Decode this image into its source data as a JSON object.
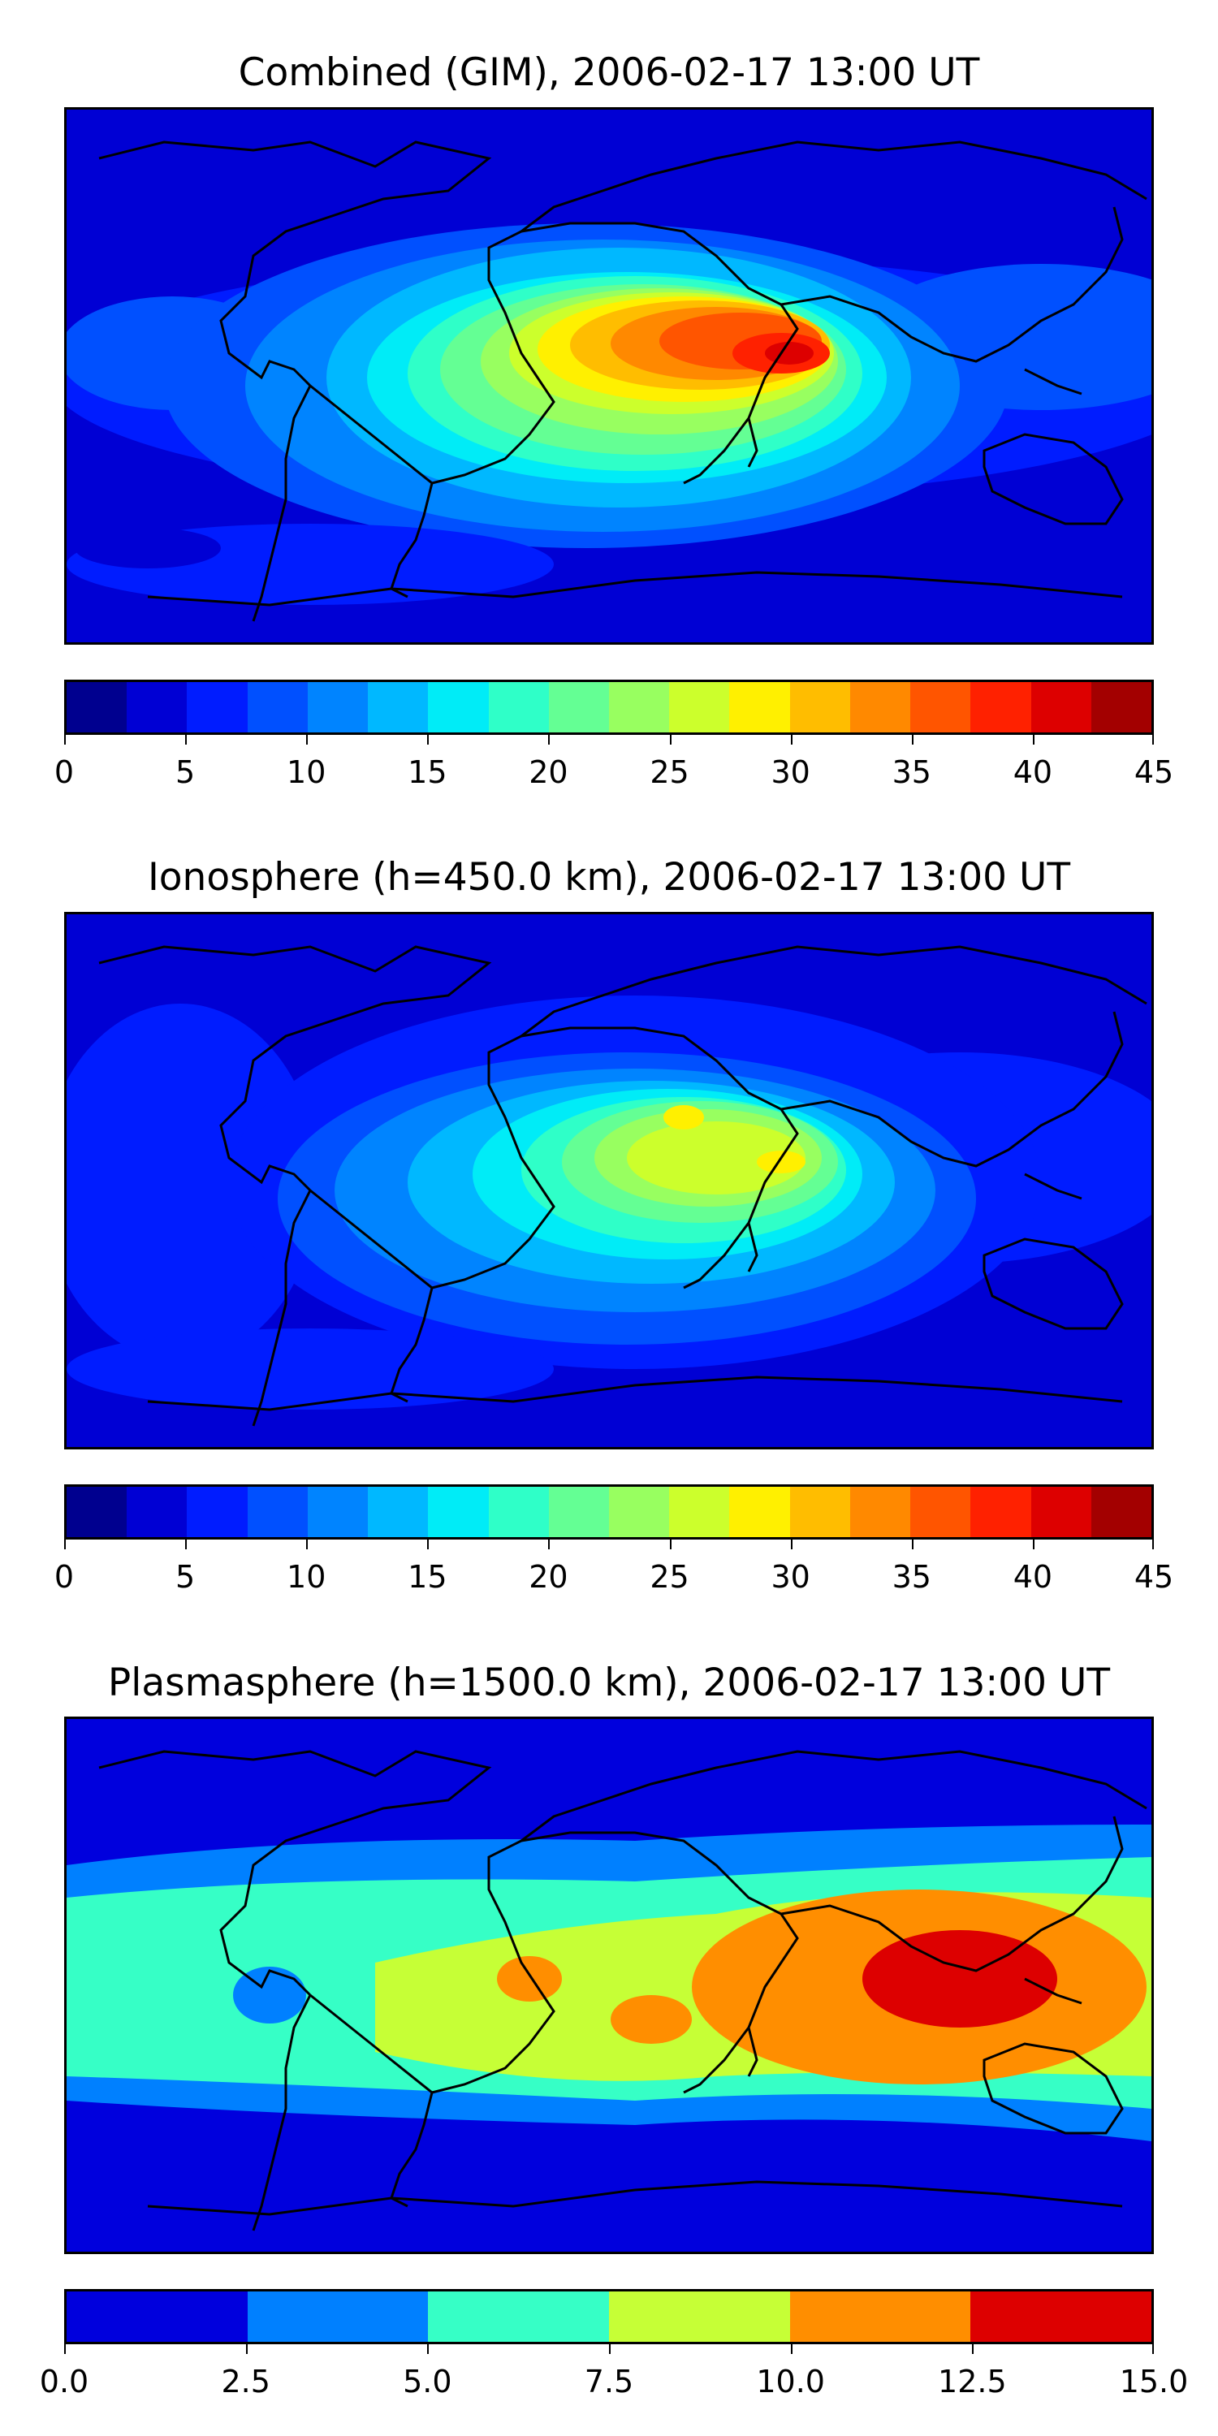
{
  "panels": [
    {
      "title": "Combined (GIM), 2006-02-17 13:00 UT",
      "colorbar": {
        "ticks": [
          "0",
          "5",
          "10",
          "15",
          "20",
          "25",
          "30",
          "35",
          "40",
          "45"
        ],
        "colors": [
          "#00008f",
          "#0000d4",
          "#001cff",
          "#0050ff",
          "#0084ff",
          "#00b8ff",
          "#00ecf7",
          "#2fffc8",
          "#64ff94",
          "#98ff60",
          "#ccff2c",
          "#fff000",
          "#ffbd00",
          "#ff8900",
          "#ff5500",
          "#ff2100",
          "#dd0000",
          "#a30000"
        ]
      }
    },
    {
      "title": "Ionosphere  (h=450.0 km), 2006-02-17 13:00 UT",
      "colorbar": {
        "ticks": [
          "0",
          "5",
          "10",
          "15",
          "20",
          "25",
          "30",
          "35",
          "40",
          "45"
        ],
        "colors": [
          "#00008f",
          "#0000d4",
          "#001cff",
          "#0050ff",
          "#0084ff",
          "#00b8ff",
          "#00ecf7",
          "#2fffc8",
          "#64ff94",
          "#98ff60",
          "#ccff2c",
          "#fff000",
          "#ffbd00",
          "#ff8900",
          "#ff5500",
          "#ff2100",
          "#dd0000",
          "#a30000"
        ]
      }
    },
    {
      "title": "Plasmasphere (h=1500.0 km), 2006-02-17 13:00 UT",
      "colorbar": {
        "ticks": [
          "0.0",
          "2.5",
          "5.0",
          "7.5",
          "10.0",
          "12.5",
          "15.0"
        ],
        "colors": [
          "#0000dd",
          "#0080ff",
          "#36ffc6",
          "#c6ff36",
          "#ff8e00",
          "#dd0000"
        ]
      }
    }
  ]
}
